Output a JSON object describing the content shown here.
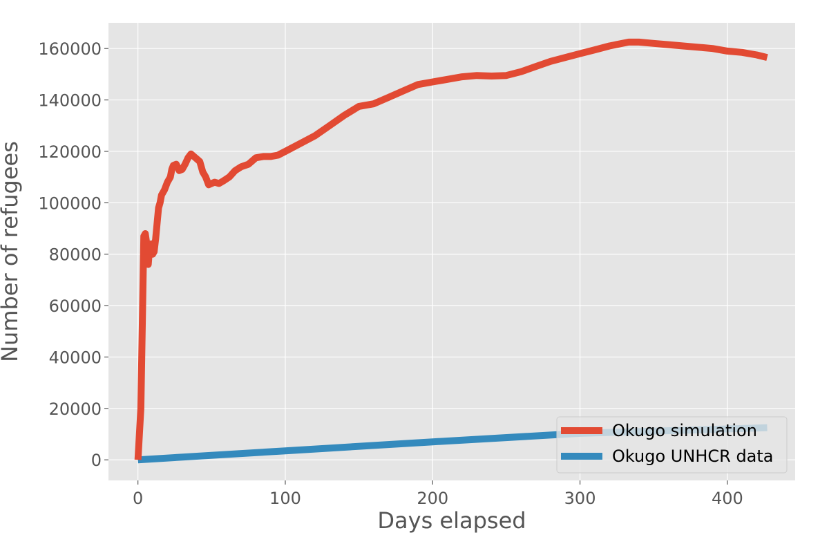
{
  "chart_data": {
    "type": "line",
    "title": "",
    "xlabel": "Days elapsed",
    "ylabel": "Number of refugees",
    "xlim": [
      -20,
      446
    ],
    "ylim": [
      -8000,
      170000
    ],
    "xticks": [
      0,
      100,
      200,
      300,
      400
    ],
    "yticks": [
      0,
      20000,
      40000,
      60000,
      80000,
      100000,
      120000,
      140000,
      160000
    ],
    "grid": true,
    "legend_position": "bottom-right",
    "series": [
      {
        "name": "Okugo simulation",
        "color": "#e24a33",
        "x": [
          0,
          2,
          4,
          5,
          6,
          7,
          8,
          9,
          10,
          11,
          12,
          13,
          14,
          15,
          16,
          18,
          20,
          22,
          23,
          24,
          26,
          28,
          30,
          32,
          34,
          36,
          38,
          40,
          42,
          44,
          46,
          48,
          50,
          52,
          55,
          58,
          62,
          66,
          70,
          75,
          80,
          85,
          90,
          95,
          100,
          110,
          120,
          130,
          140,
          150,
          160,
          170,
          180,
          190,
          200,
          210,
          220,
          230,
          240,
          250,
          260,
          270,
          280,
          290,
          300,
          310,
          320,
          333,
          340,
          350,
          360,
          370,
          380,
          390,
          400,
          410,
          420,
          427
        ],
        "y": [
          0,
          20000,
          87000,
          88000,
          84000,
          76000,
          83000,
          84000,
          80000,
          81000,
          86000,
          92000,
          98000,
          100000,
          103000,
          105000,
          108000,
          110000,
          113000,
          114500,
          115000,
          112500,
          113000,
          115000,
          117500,
          119000,
          118000,
          117000,
          116000,
          112000,
          110000,
          107000,
          107500,
          108000,
          107500,
          108500,
          110000,
          112500,
          114000,
          115000,
          117500,
          118000,
          118000,
          118500,
          120000,
          123000,
          126000,
          130000,
          134000,
          137500,
          138500,
          141000,
          143500,
          146000,
          147000,
          148000,
          149000,
          149500,
          149300,
          149500,
          151000,
          153000,
          155000,
          156500,
          158000,
          159500,
          161000,
          162500,
          162500,
          162000,
          161500,
          161000,
          160500,
          160000,
          159000,
          158500,
          157500,
          156500
        ]
      },
      {
        "name": "Okugo UNHCR data",
        "color": "#348abd",
        "x": [
          0,
          100,
          200,
          300,
          427
        ],
        "y": [
          0,
          3500,
          7000,
          10300,
          12500
        ]
      }
    ]
  }
}
